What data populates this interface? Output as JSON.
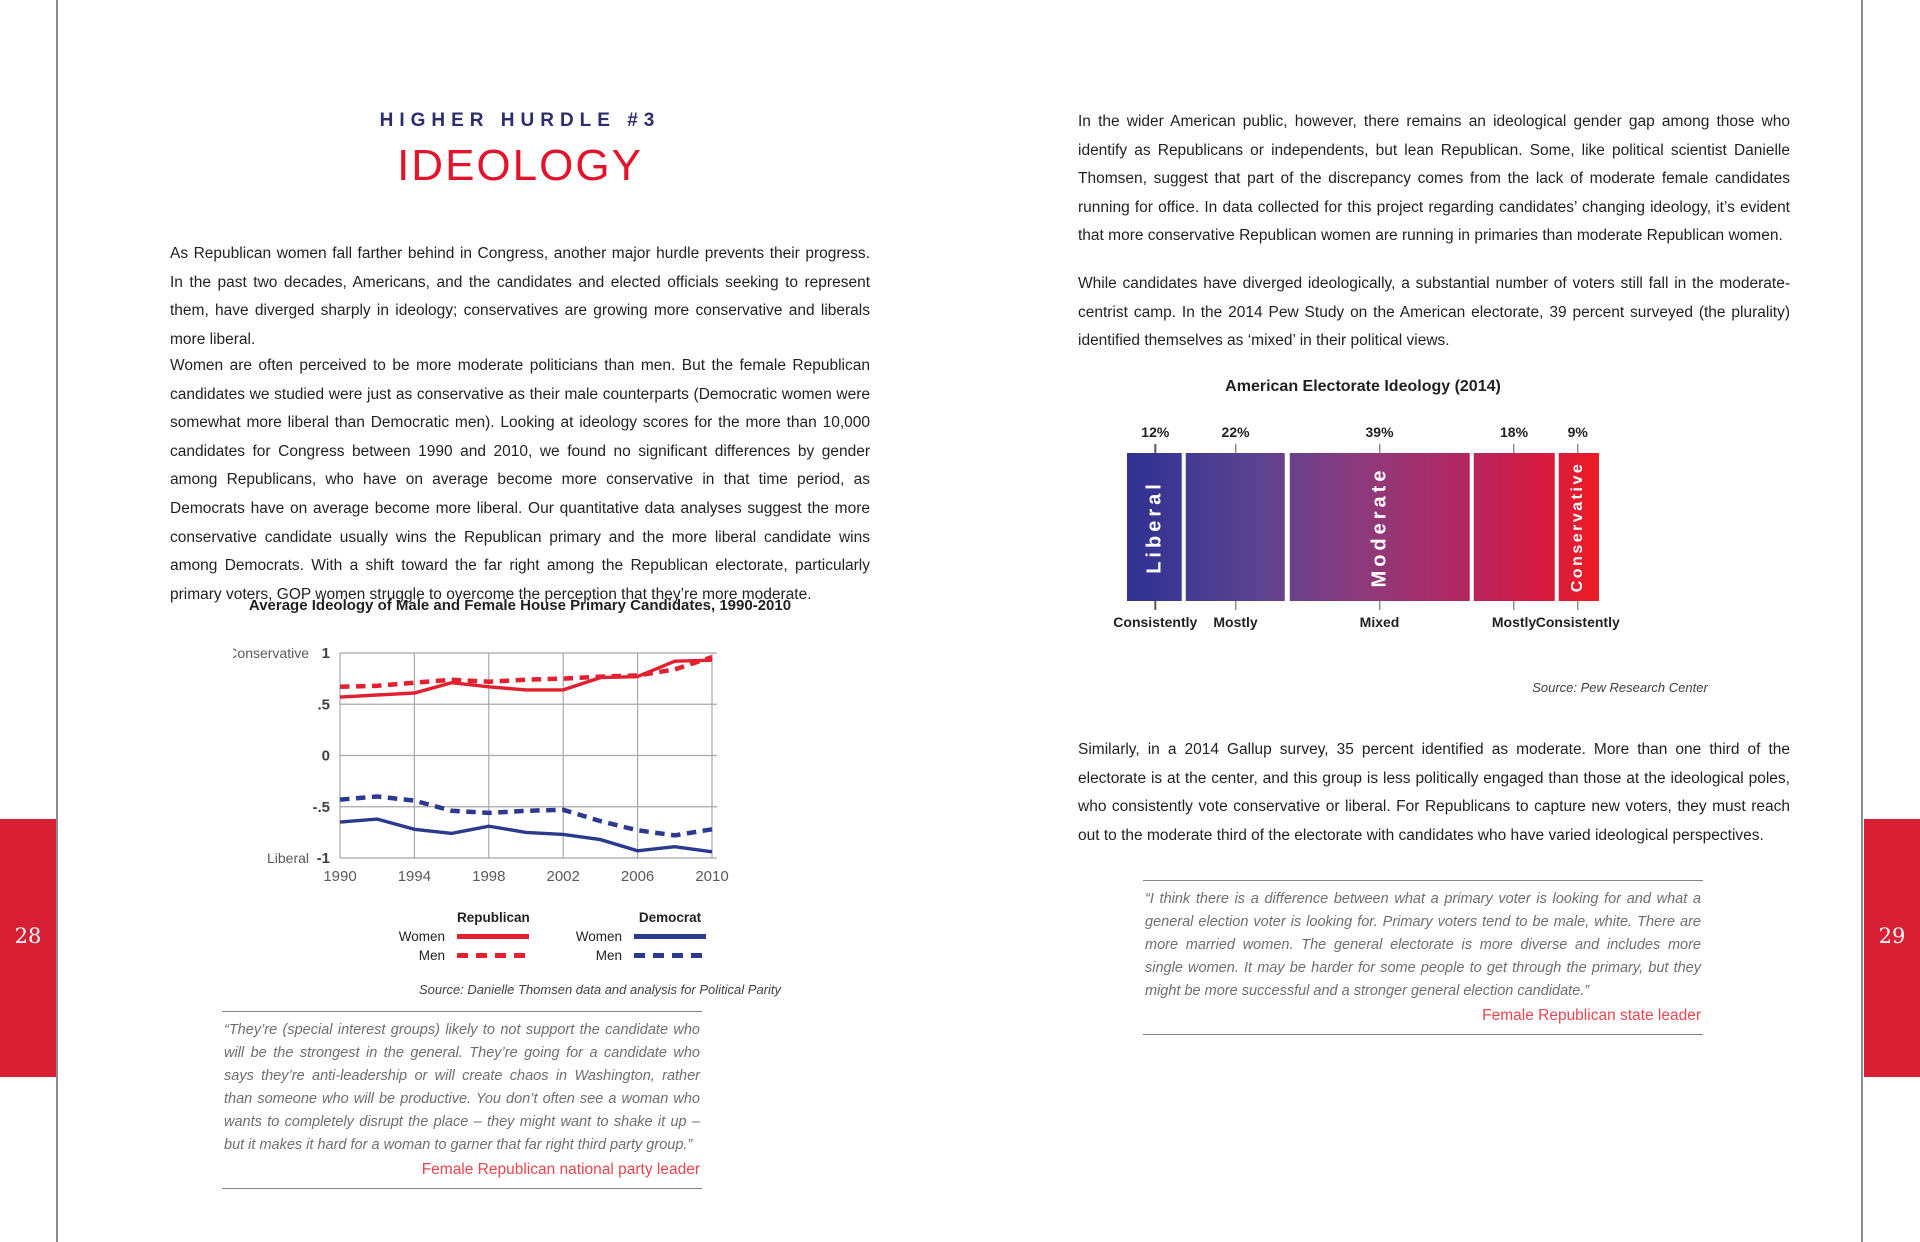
{
  "left_page": {
    "page_number": "28",
    "kicker": "HIGHER HURDLE #3",
    "title": "IDEOLOGY",
    "paragraphs": [
      "As Republican women fall farther behind in Congress, another major hurdle prevents their progress. In the past two decades, Americans, and the candidates and elected officials seeking to represent them, have diverged sharply in ideology; conservatives are growing more conservative and liberals more liberal.",
      "Women are often perceived to be more moderate politicians than men. But the female Republican candidates we studied were just as conservative as their male counterparts (Democratic women were somewhat more liberal than Democratic men). Looking at ideology scores for the more than 10,000 candidates for Congress between 1990 and 2010, we found no significant differences by gender among Republicans, who have on average become more conservative in that time period, as Democrats have on average become more liberal. Our quantitative data analyses suggest the more conservative candidate usually wins the Republican primary and the more liberal candidate wins among Democrats. With a shift toward the far right among the Republican electorate, particularly primary voters, GOP women struggle to overcome the perception that they’re more moderate."
    ],
    "quote": {
      "text": "“They’re (special interest groups) likely to not support the candidate who will be the strongest in the general. They’re going for a candidate who says they’re anti-leadership or will create chaos in Washington, rather than someone who will be productive. You don’t often see a woman who wants to completely disrupt the place – they might want to shake it up – but it makes it hard for a woman to garner that far right third party group.”",
      "attribution": "Female Republican national party leader"
    }
  },
  "right_page": {
    "page_number": "29",
    "paragraphs": [
      "In the wider American public, however, there remains an ideological gender gap among those who identify as Republicans or independents, but lean Republican. Some, like political scientist Danielle Thomsen, suggest that part of the discrepancy comes from the lack of moderate female candidates running for office. In data collected for this project regarding candidates’ changing ideology, it’s evident that more conservative Republican women are running in primaries than moderate Republican women.",
      "While candidates have diverged ideologically, a substantial number of voters still fall in the moderate-centrist camp. In the 2014 Pew Study on the American electorate, 39 percent surveyed (the plurality) identified themselves as ‘mixed’ in their political views.",
      "Similarly, in a 2014 Gallup survey, 35 percent identified as moderate. More than one third of the electorate is at the center, and this group is less politically engaged than those at the ideological poles, who consistently vote conservative or liberal. For Republicans to capture new voters, they must reach out to the moderate third of the electorate with candidates who have varied ideological perspectives."
    ],
    "quote": {
      "text": "“I think there is a difference between what a primary voter is looking for and what a general election voter is looking for. Primary voters tend to be male, white. There are more married women. The general electorate is more diverse and includes more single women. It may be harder for some people to get through the primary, but they might be more successful and a stronger general election candidate.”",
      "attribution": "Female Republican state leader"
    }
  },
  "legend": {
    "groups": [
      {
        "header": "Republican",
        "color": "#e2202f",
        "rows": [
          {
            "label": "Women",
            "style": "solid"
          },
          {
            "label": "Men",
            "style": "dashed"
          }
        ]
      },
      {
        "header": "Democrat",
        "color": "#2b3a8f",
        "rows": [
          {
            "label": "Women",
            "style": "solid"
          },
          {
            "label": "Men",
            "style": "dashed"
          }
        ]
      }
    ]
  },
  "chart_data": [
    {
      "type": "line",
      "title": "Average Ideology of Male and Female House Primary Candidates, 1990-2010",
      "x": [
        1990,
        1992,
        1994,
        1996,
        1998,
        2000,
        2002,
        2004,
        2006,
        2008,
        2010
      ],
      "series": [
        {
          "name": "Republican Women",
          "style": "solid",
          "color": "#e2202f",
          "values": [
            0.57,
            0.59,
            0.61,
            0.71,
            0.67,
            0.64,
            0.64,
            0.76,
            0.77,
            0.92,
            0.93
          ]
        },
        {
          "name": "Republican Men",
          "style": "dashed",
          "color": "#e2202f",
          "values": [
            0.67,
            0.68,
            0.71,
            0.74,
            0.72,
            0.74,
            0.75,
            0.77,
            0.78,
            0.84,
            0.96
          ]
        },
        {
          "name": "Democrat Women",
          "style": "solid",
          "color": "#2b3a8f",
          "values": [
            -0.65,
            -0.62,
            -0.72,
            -0.76,
            -0.69,
            -0.75,
            -0.77,
            -0.82,
            -0.93,
            -0.89,
            -0.94
          ]
        },
        {
          "name": "Democrat Men",
          "style": "dashed",
          "color": "#2b3a8f",
          "values": [
            -0.43,
            -0.4,
            -0.44,
            -0.54,
            -0.56,
            -0.54,
            -0.53,
            -0.64,
            -0.73,
            -0.78,
            -0.72
          ]
        }
      ],
      "ylim": [
        -1,
        1
      ],
      "yticks": [
        {
          "value": 1,
          "label": "1",
          "side_label": "Conservative"
        },
        {
          "value": 0.5,
          "label": ".5",
          "side_label": ""
        },
        {
          "value": 0,
          "label": "0",
          "side_label": ""
        },
        {
          "value": -0.5,
          "label": "-.5",
          "side_label": ""
        },
        {
          "value": -1,
          "label": "-1",
          "side_label": "Liberal"
        }
      ],
      "xticks": [
        "1990",
        "1994",
        "1998",
        "2002",
        "2006",
        "2010"
      ],
      "grid": true,
      "legend_position": "bottom",
      "source": "Source: Danielle Thomsen data and analysis for Political Parity"
    },
    {
      "type": "bar",
      "title": "American Electorate Ideology (2014)",
      "segments": [
        {
          "pct": 12,
          "label": "12%",
          "bottom_label": "Consistently",
          "band_label": "Liberal",
          "band_size": 20
        },
        {
          "pct": 22,
          "label": "22%",
          "bottom_label": "Mostly",
          "band_label": "",
          "band_size": 0
        },
        {
          "pct": 39,
          "label": "39%",
          "bottom_label": "Mixed",
          "band_label": "Moderate",
          "band_size": 20
        },
        {
          "pct": 18,
          "label": "18%",
          "bottom_label": "Mostly",
          "band_label": "",
          "band_size": 0
        },
        {
          "pct": 9,
          "label": "9%",
          "bottom_label": "Consistently",
          "band_label": "Conservative",
          "band_size": 16
        }
      ],
      "gradient": [
        "#2e3192",
        "#ed1c24"
      ],
      "source": "Source: Pew Research Center"
    }
  ],
  "colors": {
    "accent_red": "#e4132c",
    "navy": "#2b2d6e",
    "tab_red": "#d91f33",
    "chart_red": "#e2202f",
    "chart_blue": "#2b3a8f",
    "attribution_red": "#e8454f"
  }
}
